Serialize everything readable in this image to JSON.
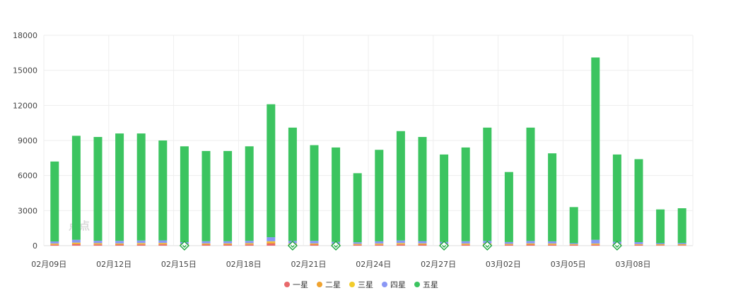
{
  "chart_data": {
    "type": "bar",
    "stacked": true,
    "title": "",
    "xlabel": "",
    "ylabel": "",
    "ylim": [
      0,
      18000
    ],
    "yticks": [
      0,
      3000,
      6000,
      9000,
      12000,
      15000,
      18000
    ],
    "grid": true,
    "legend_position": "bottom",
    "watermark": "点点",
    "categories": [
      "02月09日",
      "02月10日",
      "02月11日",
      "02月12日",
      "02月13日",
      "02月14日",
      "02月15日",
      "02月16日",
      "02月17日",
      "02月18日",
      "02月19日",
      "02月20日",
      "02月21日",
      "02月22日",
      "02月23日",
      "02月24日",
      "02月25日",
      "02月26日",
      "02月27日",
      "02月28日",
      "03月01日",
      "03月02日",
      "03月03日",
      "03月04日",
      "03月05日",
      "03月06日",
      "03月07日",
      "03月08日",
      "03月09日",
      "03月10日"
    ],
    "x_tick_labels": [
      "02月09日",
      "",
      "",
      "02月12日",
      "",
      "",
      "02月15日",
      "",
      "",
      "02月18日",
      "",
      "",
      "02月21日",
      "",
      "",
      "02月24日",
      "",
      "",
      "02月27日",
      "",
      "",
      "03月02日",
      "",
      "",
      "03月05日",
      "",
      "",
      "03月08日",
      "",
      ""
    ],
    "markers": [
      "02月15日",
      "02月20日",
      "02月22日",
      "02月27日",
      "03月01日",
      "03月07日"
    ],
    "series": [
      {
        "name": "一星",
        "color": "#e8696b",
        "values": [
          80,
          130,
          100,
          90,
          100,
          110,
          70,
          90,
          90,
          100,
          180,
          90,
          90,
          70,
          70,
          80,
          100,
          90,
          70,
          80,
          90,
          70,
          90,
          80,
          60,
          80,
          70,
          60,
          50,
          50
        ]
      },
      {
        "name": "二星",
        "color": "#f0a330",
        "values": [
          60,
          80,
          70,
          60,
          70,
          70,
          50,
          60,
          60,
          70,
          110,
          60,
          60,
          50,
          50,
          60,
          70,
          60,
          50,
          60,
          60,
          50,
          60,
          60,
          40,
          60,
          50,
          40,
          40,
          40
        ]
      },
      {
        "name": "三星",
        "color": "#f2cc2b",
        "values": [
          40,
          50,
          40,
          40,
          50,
          50,
          30,
          40,
          40,
          40,
          80,
          40,
          40,
          30,
          30,
          40,
          50,
          40,
          30,
          40,
          40,
          30,
          40,
          40,
          30,
          40,
          30,
          30,
          30,
          30
        ]
      },
      {
        "name": "四星",
        "color": "#8a97f5",
        "values": [
          180,
          240,
          210,
          220,
          220,
          220,
          150,
          190,
          190,
          200,
          350,
          210,
          220,
          170,
          140,
          190,
          220,
          200,
          170,
          200,
          210,
          160,
          210,
          190,
          80,
          320,
          180,
          170,
          90,
          100
        ]
      },
      {
        "name": "五星",
        "color": "#3cc460",
        "values": [
          6840,
          8900,
          8880,
          9190,
          9160,
          8550,
          8200,
          7720,
          7720,
          8090,
          11380,
          9700,
          8190,
          8080,
          5910,
          7830,
          9360,
          8910,
          7480,
          8020,
          9700,
          5990,
          9700,
          7530,
          3090,
          15600,
          7470,
          7100,
          2890,
          2980
        ]
      }
    ]
  }
}
